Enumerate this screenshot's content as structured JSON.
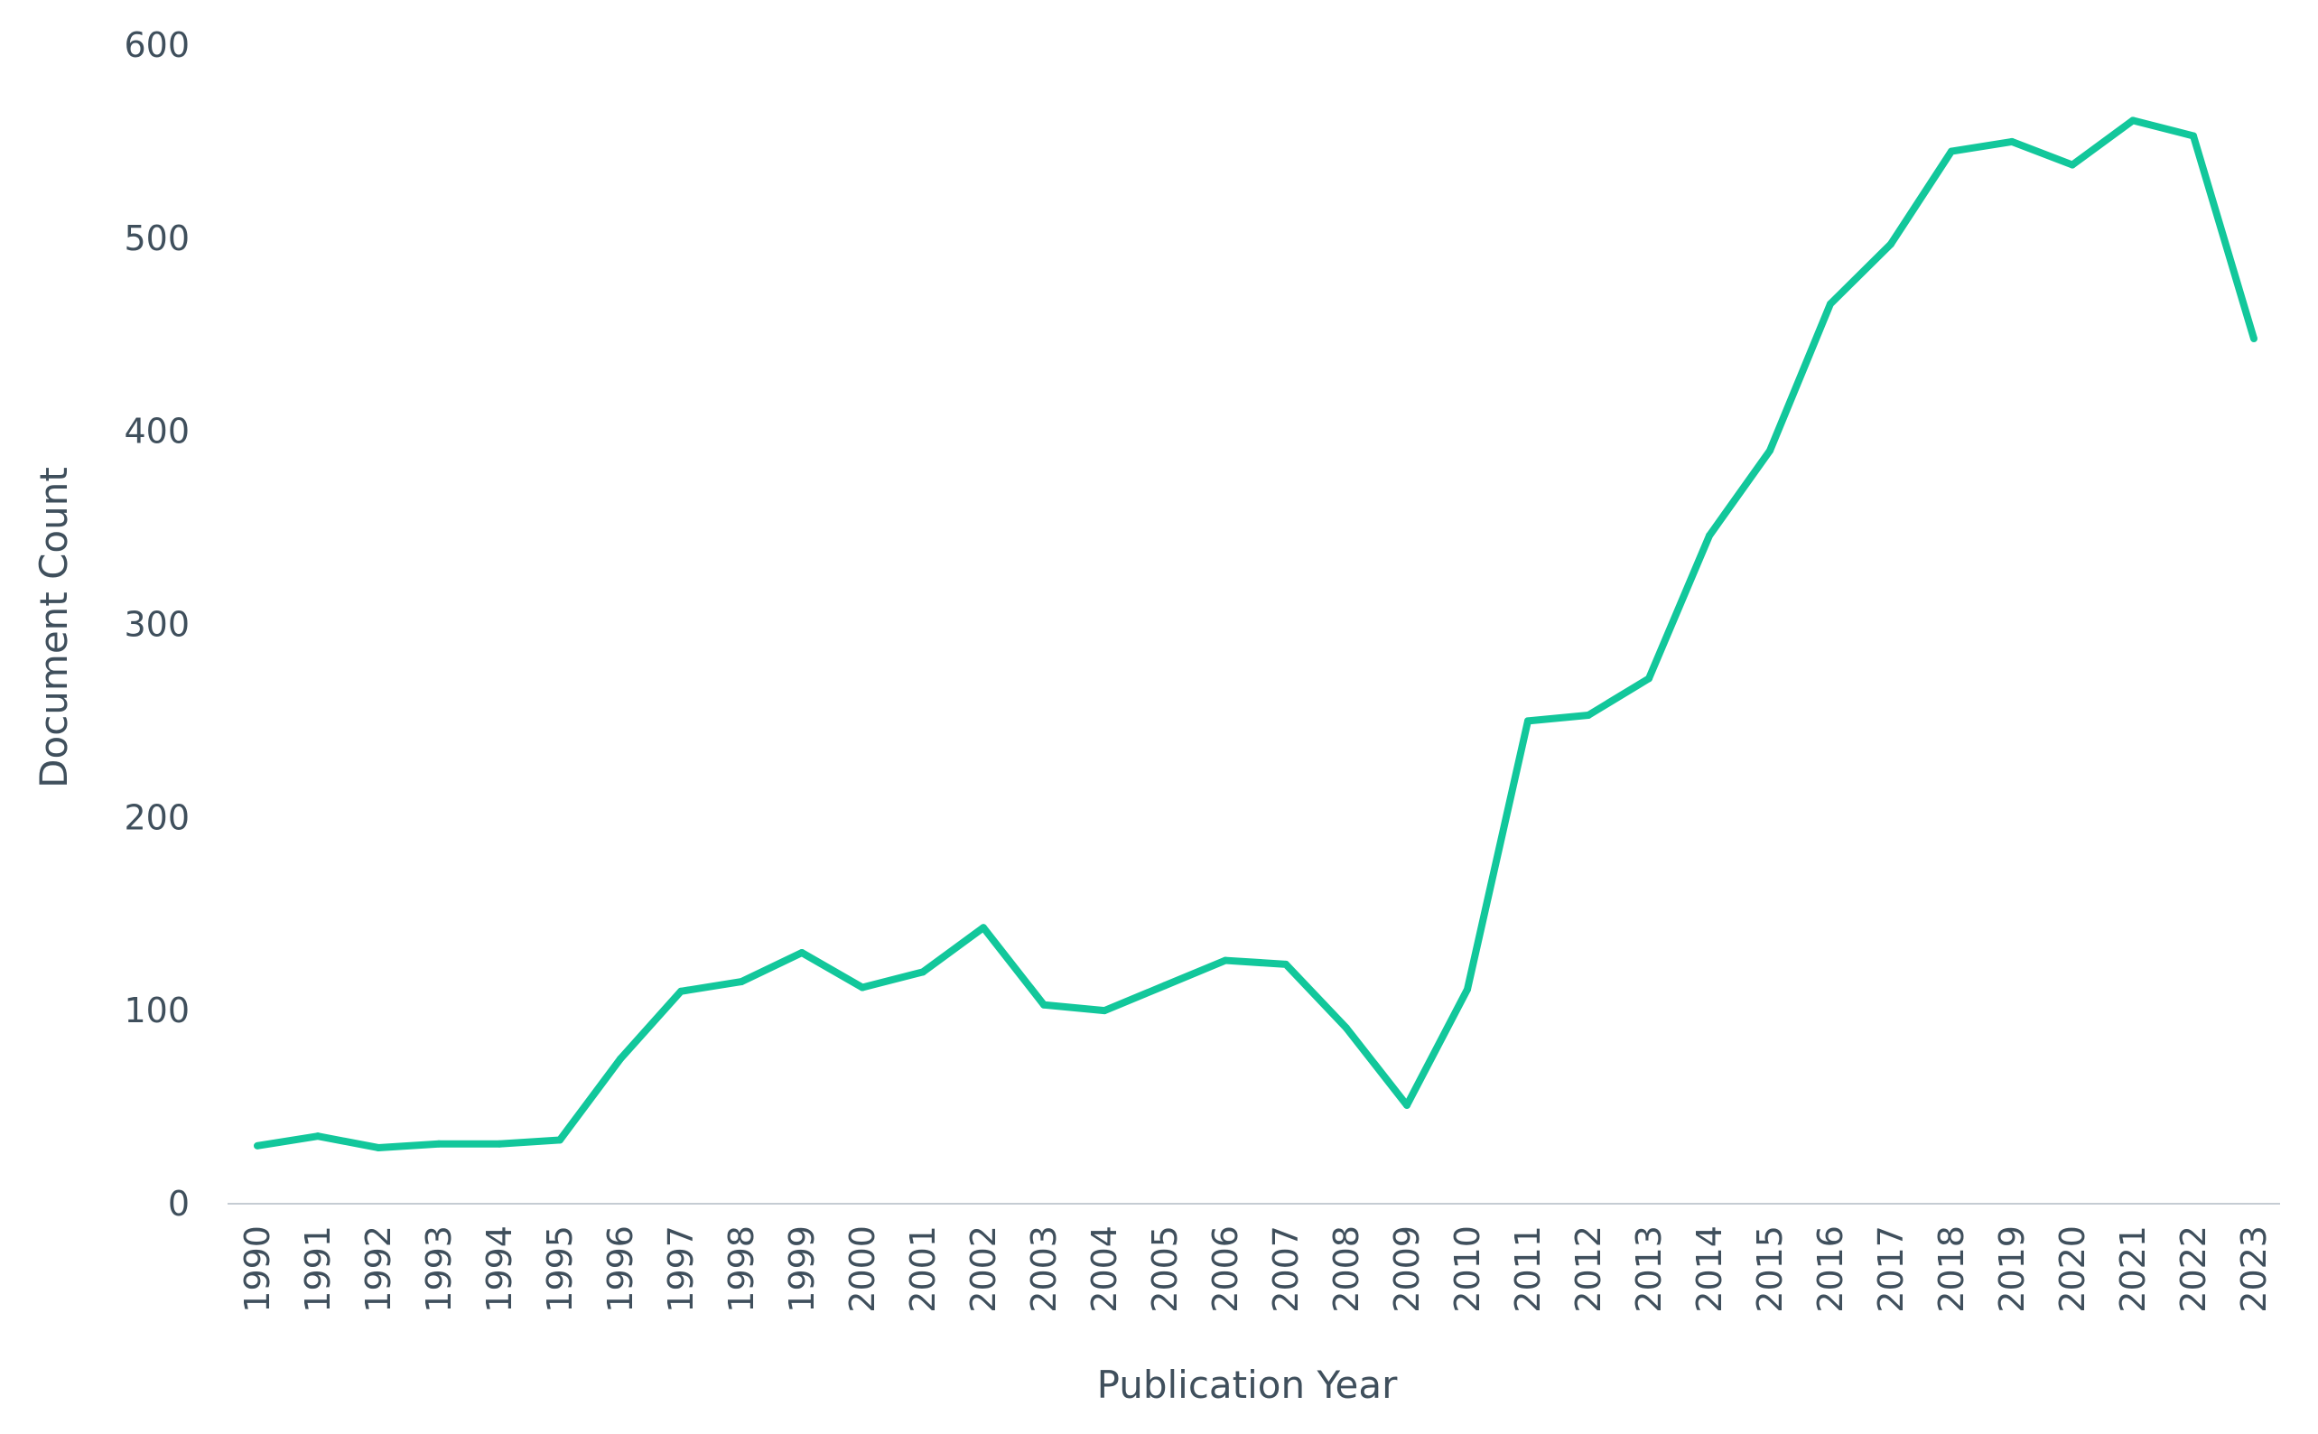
{
  "chart_data": {
    "type": "line",
    "title": "",
    "xlabel": "Publication Year",
    "ylabel": "Document Count",
    "x": [
      "1990",
      "1991",
      "1992",
      "1993",
      "1994",
      "1995",
      "1996",
      "1997",
      "1998",
      "1999",
      "2000",
      "2001",
      "2002",
      "2003",
      "2004",
      "2005",
      "2006",
      "2007",
      "2008",
      "2009",
      "2010",
      "2011",
      "2012",
      "2013",
      "2014",
      "2015",
      "2016",
      "2017",
      "2018",
      "2019",
      "2020",
      "2021",
      "2022",
      "2023"
    ],
    "series": [
      {
        "name": "",
        "color": "#12c79b",
        "values": [
          30,
          35,
          29,
          31,
          31,
          33,
          75,
          110,
          115,
          130,
          112,
          120,
          143,
          103,
          100,
          113,
          126,
          124,
          91,
          51,
          111,
          250,
          253,
          272,
          346,
          390,
          466,
          497,
          545,
          550,
          538,
          561,
          553,
          448
        ]
      }
    ],
    "yticks": [
      0,
      100,
      200,
      300,
      400,
      500,
      600
    ],
    "ylim": [
      0,
      600
    ],
    "grid": false,
    "legend": "none",
    "colors": {
      "axis": "#c5ccd3",
      "text": "#3f4f5c"
    }
  }
}
